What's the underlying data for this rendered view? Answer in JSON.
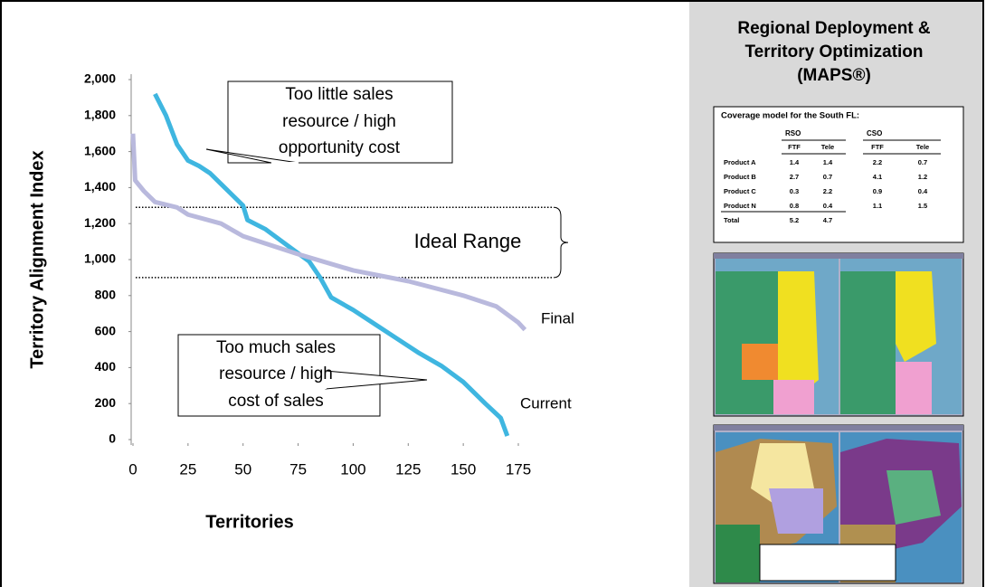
{
  "chart_data": {
    "type": "line",
    "ylabel": "Territory Alignment Index",
    "xlabel": "Territories",
    "xlim": [
      0,
      175
    ],
    "ylim": [
      0,
      2000
    ],
    "xticks": [
      0,
      25,
      50,
      75,
      100,
      125,
      150,
      175
    ],
    "yticks": [
      0,
      200,
      400,
      600,
      800,
      {
        "value": 1000,
        "label": "1,000"
      },
      {
        "value": 1200,
        "label": "1,200"
      },
      {
        "value": 1400,
        "label": "1,400"
      },
      {
        "value": 1600,
        "label": "1,600"
      },
      {
        "value": 1800,
        "label": "1,800"
      },
      {
        "value": 2000,
        "label": "2,000"
      }
    ],
    "series": [
      {
        "name": "Current",
        "color": "#3fb6e0",
        "x": [
          10,
          15,
          20,
          25,
          30,
          35,
          40,
          45,
          50,
          52,
          60,
          70,
          80,
          85,
          90,
          100,
          110,
          120,
          130,
          140,
          150,
          160,
          167,
          170
        ],
        "values": [
          1920,
          1800,
          1640,
          1550,
          1520,
          1480,
          1420,
          1360,
          1300,
          1220,
          1170,
          1080,
          990,
          900,
          790,
          720,
          640,
          560,
          480,
          410,
          320,
          200,
          120,
          20
        ]
      },
      {
        "name": "Final",
        "color": "#b9b9dd",
        "x": [
          0,
          1,
          5,
          10,
          20,
          25,
          40,
          50,
          75,
          100,
          125,
          150,
          165,
          175,
          178
        ],
        "values": [
          1700,
          1440,
          1380,
          1320,
          1290,
          1250,
          1200,
          1130,
          1030,
          940,
          880,
          800,
          740,
          650,
          610
        ]
      }
    ],
    "ideal_range": {
      "label": "Ideal Range",
      "values": [
        900,
        1290
      ]
    },
    "annotations": [
      {
        "lines": [
          "Too little sales",
          "resource / high",
          "opportunity cost"
        ]
      },
      {
        "lines": [
          "Too much sales",
          "resource / high",
          "cost of sales"
        ]
      }
    ]
  },
  "panel": {
    "title": [
      "Regional Deployment &",
      "Territory Optimization",
      "(MAPS®)"
    ],
    "table": {
      "caption": "Coverage model for the South FL:",
      "groups": [
        "RSO",
        "CSO"
      ],
      "columns": [
        "FTF",
        "Tele",
        "FTF",
        "Tele"
      ],
      "rows": [
        [
          "Product A",
          "1.4",
          "1.4",
          "2.2",
          "0.7"
        ],
        [
          "Product B",
          "2.7",
          "0.7",
          "4.1",
          "1.2"
        ],
        [
          "Product C",
          "0.3",
          "2.2",
          "0.9",
          "0.4"
        ],
        [
          "Product N",
          "0.8",
          "0.4",
          "1.1",
          "1.5"
        ],
        [
          "Total",
          "5.2",
          "4.7"
        ]
      ]
    }
  }
}
